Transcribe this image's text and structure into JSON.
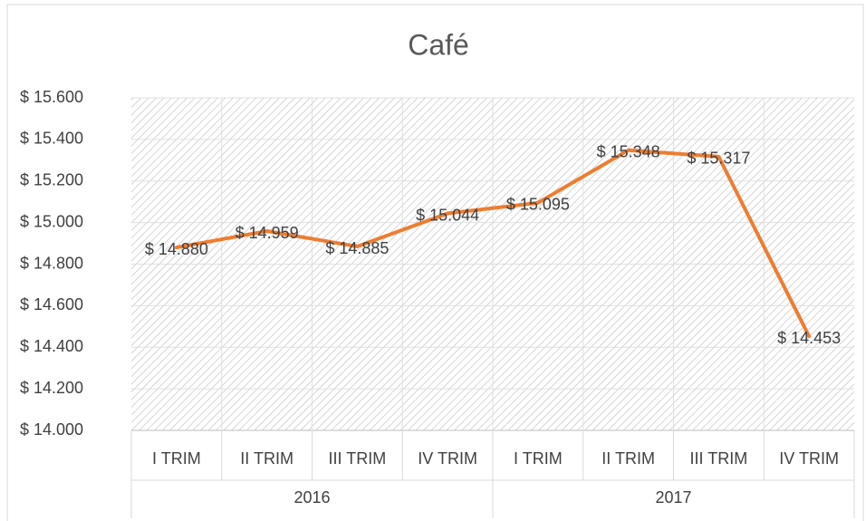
{
  "chart_data": {
    "type": "line",
    "title": "Café",
    "categories": [
      "I TRIM",
      "II TRIM",
      "III TRIM",
      "IV TRIM",
      "I TRIM",
      "II TRIM",
      "III TRIM",
      "IV TRIM"
    ],
    "category_groups": [
      "2016",
      "2017"
    ],
    "series": [
      {
        "name": "Café",
        "color": "#ed7d31",
        "values": [
          14880,
          14959,
          14885,
          15044,
          15095,
          15348,
          15317,
          14453
        ],
        "value_labels": [
          "$ 14.880",
          "$ 14.959",
          "$ 14.885",
          "$ 15.044",
          "$ 15.095",
          "$ 15.348",
          "$ 15.317",
          "$ 14.453"
        ]
      }
    ],
    "ylim": [
      14000,
      15600
    ],
    "yticks": [
      {
        "value": 14000,
        "label": "$ 14.000"
      },
      {
        "value": 14200,
        "label": "$ 14.200"
      },
      {
        "value": 14400,
        "label": "$ 14.400"
      },
      {
        "value": 14600,
        "label": "$ 14.600"
      },
      {
        "value": 14800,
        "label": "$ 14.800"
      },
      {
        "value": 15000,
        "label": "$ 15.000"
      },
      {
        "value": 15200,
        "label": "$ 15.200"
      },
      {
        "value": 15400,
        "label": "$ 15.400"
      },
      {
        "value": 15600,
        "label": "$ 15.600"
      }
    ],
    "grid": true
  }
}
